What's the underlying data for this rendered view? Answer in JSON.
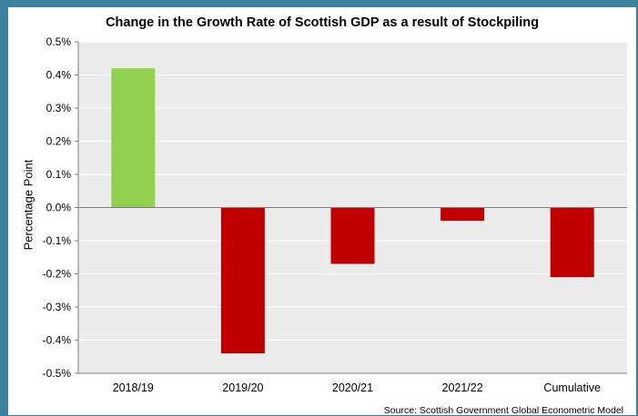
{
  "chart_data": {
    "type": "bar",
    "title": "Change in the Growth Rate of Scottish GDP as a result of Stockpiling",
    "ylabel": "Percentage Point",
    "xlabel": "",
    "categories": [
      "2018/19",
      "2019/20",
      "2020/21",
      "2021/22",
      "Cumulative"
    ],
    "values": [
      0.42,
      -0.44,
      -0.17,
      -0.04,
      -0.21
    ],
    "ylim": [
      -0.5,
      0.5
    ],
    "yticks": [
      0.5,
      0.4,
      0.3,
      0.2,
      0.1,
      0.0,
      -0.1,
      -0.2,
      -0.3,
      -0.4,
      -0.5
    ],
    "ytick_labels": [
      "0.5%",
      "0.4%",
      "0.3%",
      "0.2%",
      "0.1%",
      "0.0%",
      "-0.1%",
      "-0.2%",
      "-0.3%",
      "-0.4%",
      "-0.5%"
    ],
    "grid": true,
    "colors": {
      "positive": "#92d050",
      "negative": "#c00000",
      "plot_bg": "#ebebeb",
      "grid": "#ffffff"
    },
    "source": "Source: Scottish Government Global Econometric Model"
  }
}
